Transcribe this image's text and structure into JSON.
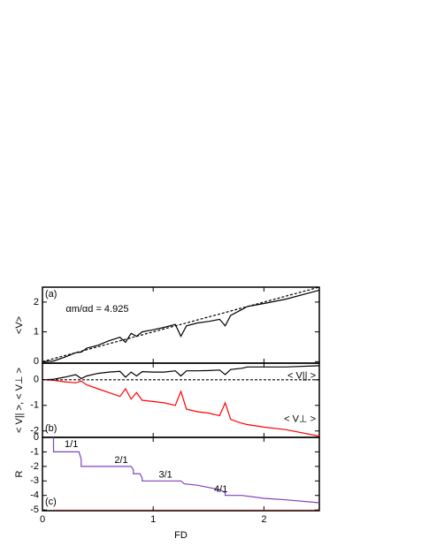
{
  "chart_data": [
    {
      "type": "line",
      "panel_label": "(a)",
      "annotation": "αm/αd = 4.925",
      "ylabel": "<V>",
      "x": [
        0,
        0.1,
        0.2,
        0.3,
        0.35,
        0.4,
        0.5,
        0.6,
        0.7,
        0.75,
        0.8,
        0.85,
        0.9,
        1.0,
        1.1,
        1.2,
        1.25,
        1.3,
        1.4,
        1.5,
        1.6,
        1.65,
        1.7,
        1.8,
        1.85,
        2.0,
        2.2,
        2.5
      ],
      "series": [
        {
          "color": "#000000",
          "dash": false,
          "values": [
            0,
            0.02,
            0.15,
            0.3,
            0.32,
            0.45,
            0.55,
            0.7,
            0.82,
            0.65,
            0.95,
            0.85,
            1.0,
            1.07,
            1.15,
            1.25,
            0.85,
            1.2,
            1.3,
            1.35,
            1.42,
            1.2,
            1.55,
            1.75,
            1.85,
            1.95,
            2.1,
            2.4
          ]
        },
        {
          "color": "#000000",
          "dash": true,
          "values": [
            0,
            0.1,
            0.2,
            0.3,
            0.35,
            0.4,
            0.5,
            0.6,
            0.7,
            0.75,
            0.8,
            0.85,
            0.9,
            1.0,
            1.1,
            1.2,
            1.25,
            1.3,
            1.4,
            1.5,
            1.6,
            1.65,
            1.7,
            1.8,
            1.85,
            2.0,
            2.2,
            2.5
          ]
        }
      ],
      "xlim": [
        0,
        2.5
      ],
      "xticks": [
        0,
        1,
        2
      ],
      "ylim": [
        -0.05,
        2.5
      ],
      "yticks": [
        0,
        1,
        2
      ]
    },
    {
      "type": "line",
      "panel_label": "(b)",
      "ylabel": "< V|| >, < V⊥ >",
      "x": [
        0,
        0.1,
        0.2,
        0.3,
        0.35,
        0.4,
        0.5,
        0.6,
        0.7,
        0.75,
        0.8,
        0.85,
        0.9,
        1.0,
        1.1,
        1.2,
        1.25,
        1.3,
        1.4,
        1.5,
        1.6,
        1.65,
        1.7,
        1.8,
        1.85,
        2.0,
        2.2,
        2.5
      ],
      "series": [
        {
          "name": "< V|| >",
          "color": "#000000",
          "dash": false,
          "values": [
            0,
            0.02,
            0.1,
            0.2,
            0.05,
            0.15,
            0.25,
            0.3,
            0.33,
            0.1,
            0.3,
            0.15,
            0.32,
            0.3,
            0.3,
            0.35,
            0.15,
            0.35,
            0.35,
            0.36,
            0.38,
            0.2,
            0.4,
            0.45,
            0.5,
            0.5,
            0.5,
            0.55
          ]
        },
        {
          "name": "< V⊥ >",
          "color": "#ff0000",
          "dash": false,
          "values": [
            0,
            -0.02,
            -0.08,
            -0.12,
            -0.05,
            -0.2,
            -0.35,
            -0.5,
            -0.65,
            -0.35,
            -0.75,
            -0.5,
            -0.8,
            -0.85,
            -0.9,
            -1.0,
            -0.45,
            -1.15,
            -1.25,
            -1.3,
            -1.4,
            -0.9,
            -1.55,
            -1.7,
            -1.75,
            -1.85,
            -1.95,
            -2.2
          ]
        },
        {
          "color": "#000000",
          "dash": true,
          "values": [
            0,
            0,
            0,
            0,
            0,
            0,
            0,
            0,
            0,
            0,
            0,
            0,
            0,
            0,
            0,
            0,
            0,
            0,
            0,
            0,
            0,
            0,
            0,
            0,
            0,
            0,
            0,
            0
          ]
        }
      ],
      "xlim": [
        0,
        2.5
      ],
      "xticks": [
        0,
        1,
        2
      ],
      "ylim": [
        -2.25,
        0.65
      ],
      "yticks": [
        0,
        -1,
        -2
      ]
    },
    {
      "type": "line",
      "panel_label": "(c)",
      "ylabel": "R",
      "xlabel": "FD",
      "annotations": [
        "1/1",
        "2/1",
        "3/1",
        "4/1"
      ],
      "x": [
        0.1,
        0.1,
        0.33,
        0.35,
        0.35,
        0.8,
        0.82,
        0.82,
        0.88,
        0.9,
        0.9,
        1.25,
        1.28,
        1.4,
        1.6,
        1.65,
        1.65,
        1.8,
        2.0,
        2.2,
        2.5
      ],
      "series": [
        {
          "color": "#8040c0",
          "dash": false,
          "values": [
            0,
            -1,
            -1,
            -1.5,
            -2,
            -2,
            -2.2,
            -2.5,
            -2.5,
            -2.8,
            -3,
            -3,
            -3.2,
            -3.3,
            -3.6,
            -3.8,
            -4,
            -4,
            -4.2,
            -4.3,
            -4.5
          ]
        },
        {
          "color": "#ff0000",
          "dash": "dot",
          "values": [
            -5,
            -5,
            -5,
            -5,
            -5,
            -5,
            -5,
            -5,
            -5,
            -5,
            -5,
            -5,
            -5,
            -5,
            -5,
            -5,
            -5,
            -5,
            -5,
            -5,
            -5
          ]
        }
      ],
      "xlim": [
        0,
        2.5
      ],
      "xticks": [
        0,
        1,
        2
      ],
      "ylim": [
        -5.05,
        0
      ],
      "yticks": [
        0,
        -1,
        -2,
        -3,
        -4,
        -5
      ]
    }
  ]
}
